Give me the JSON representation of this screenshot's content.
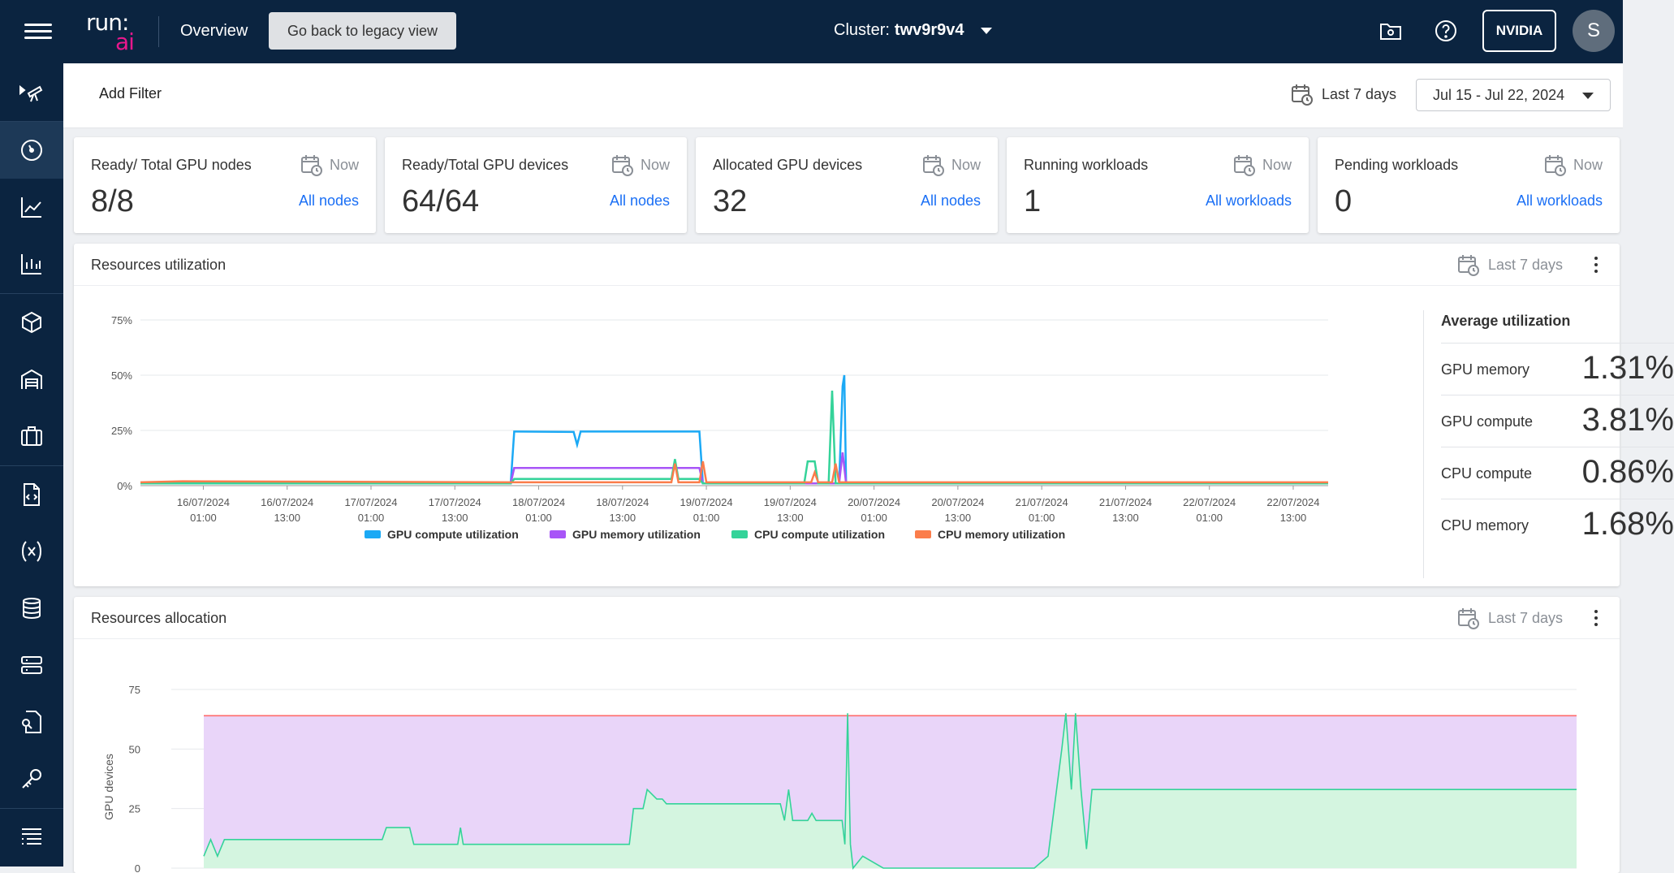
{
  "header": {
    "logo_top": "run:",
    "logo_bottom": "ai",
    "page": "Overview",
    "legacy_button": "Go back to legacy view",
    "cluster_label": "Cluster:",
    "cluster_name": "twv9r9v4",
    "tenant_button": "NVIDIA",
    "avatar_initial": "S"
  },
  "filter_bar": {
    "add_filter": "Add Filter",
    "range_label": "Last 7 days",
    "range_value": "Jul 15 - Jul 22, 2024"
  },
  "cards": [
    {
      "title": "Ready/ Total GPU nodes",
      "when": "Now",
      "value": "8/8",
      "link": "All nodes"
    },
    {
      "title": "Ready/Total GPU devices",
      "when": "Now",
      "value": "64/64",
      "link": "All nodes"
    },
    {
      "title": "Allocated GPU devices",
      "when": "Now",
      "value": "32",
      "link": "All nodes"
    },
    {
      "title": "Running workloads",
      "when": "Now",
      "value": "1",
      "link": "All workloads"
    },
    {
      "title": "Pending workloads",
      "when": "Now",
      "value": "0",
      "link": "All workloads"
    }
  ],
  "utilization_panel": {
    "title": "Resources utilization",
    "range": "Last 7 days",
    "average_title": "Average utilization",
    "averages": [
      {
        "name": "GPU memory",
        "value": "1.31%"
      },
      {
        "name": "GPU compute",
        "value": "3.81%"
      },
      {
        "name": "CPU compute",
        "value": "0.86%"
      },
      {
        "name": "CPU memory",
        "value": "1.68%"
      }
    ]
  },
  "allocation_panel": {
    "title": "Resources allocation",
    "range": "Last 7 days"
  },
  "colors": {
    "gpu_compute": "#1ba9f5",
    "gpu_memory": "#a855f7",
    "cpu_compute": "#34d399",
    "cpu_memory": "#fb7d4b",
    "link": "#1a6ff5",
    "navbar": "#0b2440"
  },
  "chart_data": [
    {
      "type": "line",
      "title": "",
      "y_ticks": [
        "75%",
        "50%",
        "25%",
        "0%"
      ],
      "ylim": [
        0,
        75
      ],
      "x_ticks": [
        {
          "date": "16/07/2024",
          "time": "01:00"
        },
        {
          "date": "16/07/2024",
          "time": "13:00"
        },
        {
          "date": "17/07/2024",
          "time": "01:00"
        },
        {
          "date": "17/07/2024",
          "time": "13:00"
        },
        {
          "date": "18/07/2024",
          "time": "01:00"
        },
        {
          "date": "18/07/2024",
          "time": "13:00"
        },
        {
          "date": "19/07/2024",
          "time": "01:00"
        },
        {
          "date": "19/07/2024",
          "time": "13:00"
        },
        {
          "date": "20/07/2024",
          "time": "01:00"
        },
        {
          "date": "20/07/2024",
          "time": "13:00"
        },
        {
          "date": "21/07/2024",
          "time": "01:00"
        },
        {
          "date": "21/07/2024",
          "time": "13:00"
        },
        {
          "date": "22/07/2024",
          "time": "01:00"
        },
        {
          "date": "22/07/2024",
          "time": "13:00"
        }
      ],
      "grid": true,
      "legend": "bottom",
      "series": [
        {
          "name": "GPU compute utilization",
          "color": "#1ba9f5",
          "points": [
            [
              "2024-07-15 16:00",
              1
            ],
            [
              "2024-07-17 21:00",
              1
            ],
            [
              "2024-07-17 21:30",
              24.5
            ],
            [
              "2024-07-18 06:00",
              24.3
            ],
            [
              "2024-07-18 06:30",
              18.5
            ],
            [
              "2024-07-18 07:00",
              24.5
            ],
            [
              "2024-07-19 00:00",
              24.5
            ],
            [
              "2024-07-19 00:30",
              1
            ],
            [
              "2024-07-19 20:00",
              1
            ],
            [
              "2024-07-19 20:30",
              45
            ],
            [
              "2024-07-19 20:45",
              50
            ],
            [
              "2024-07-19 21:00",
              1
            ],
            [
              "2024-07-22 18:00",
              1
            ]
          ]
        },
        {
          "name": "GPU memory utilization",
          "color": "#a855f7",
          "points": [
            [
              "2024-07-15 16:00",
              1
            ],
            [
              "2024-07-17 21:00",
              1
            ],
            [
              "2024-07-17 21:30",
              8
            ],
            [
              "2024-07-19 00:00",
              8
            ],
            [
              "2024-07-19 00:30",
              1
            ],
            [
              "2024-07-19 20:00",
              1
            ],
            [
              "2024-07-19 20:30",
              15
            ],
            [
              "2024-07-19 21:00",
              1
            ],
            [
              "2024-07-22 18:00",
              1
            ]
          ]
        },
        {
          "name": "CPU compute utilization",
          "color": "#34d399",
          "points": [
            [
              "2024-07-15 16:00",
              1
            ],
            [
              "2024-07-17 21:00",
              1
            ],
            [
              "2024-07-17 21:30",
              3
            ],
            [
              "2024-07-18 20:00",
              3
            ],
            [
              "2024-07-18 20:30",
              12
            ],
            [
              "2024-07-18 21:00",
              3
            ],
            [
              "2024-07-19 00:00",
              3
            ],
            [
              "2024-07-19 00:30",
              1
            ],
            [
              "2024-07-19 15:00",
              1
            ],
            [
              "2024-07-19 15:30",
              11
            ],
            [
              "2024-07-19 16:30",
              11
            ],
            [
              "2024-07-19 17:00",
              1
            ],
            [
              "2024-07-19 18:30",
              1
            ],
            [
              "2024-07-19 19:00",
              43
            ],
            [
              "2024-07-19 19:30",
              1
            ],
            [
              "2024-07-22 18:00",
              1
            ]
          ]
        },
        {
          "name": "CPU memory utilization",
          "color": "#fb7d4b",
          "points": [
            [
              "2024-07-15 16:00",
              1.5
            ],
            [
              "2024-07-15 22:00",
              2
            ],
            [
              "2024-07-17 21:00",
              1.5
            ],
            [
              "2024-07-18 20:00",
              1.5
            ],
            [
              "2024-07-18 20:30",
              10
            ],
            [
              "2024-07-18 21:00",
              1.5
            ],
            [
              "2024-07-19 00:00",
              1.5
            ],
            [
              "2024-07-19 00:30",
              11
            ],
            [
              "2024-07-19 01:00",
              1.5
            ],
            [
              "2024-07-19 16:00",
              1.5
            ],
            [
              "2024-07-19 16:30",
              6
            ],
            [
              "2024-07-19 17:00",
              1.5
            ],
            [
              "2024-07-19 19:00",
              1.5
            ],
            [
              "2024-07-19 19:30",
              10
            ],
            [
              "2024-07-19 20:00",
              1.5
            ],
            [
              "2024-07-22 18:00",
              1.5
            ]
          ]
        }
      ]
    },
    {
      "type": "area",
      "ylabel": "GPU devices",
      "y_ticks": [
        "75",
        "50",
        "25",
        "0"
      ],
      "ylim": [
        0,
        75
      ],
      "grid": true,
      "series": [
        {
          "name": "",
          "color": "#e9d5f9",
          "line": "#ff6b6b",
          "values": [
            [
              0,
              64
            ],
            [
              100,
              64
            ]
          ]
        },
        {
          "name": "",
          "color": "#d4f5e0",
          "line": "#34d399",
          "values": [
            [
              0,
              5
            ],
            [
              0.5,
              12
            ],
            [
              1,
              5
            ],
            [
              1.5,
              12
            ],
            [
              13,
              12
            ],
            [
              13.3,
              17
            ],
            [
              15,
              17
            ],
            [
              15.3,
              10
            ],
            [
              18.5,
              10
            ],
            [
              18.7,
              17
            ],
            [
              18.9,
              10
            ],
            [
              31,
              10
            ],
            [
              31.3,
              25
            ],
            [
              32,
              25
            ],
            [
              32.3,
              33
            ],
            [
              33,
              29
            ],
            [
              33.4,
              29
            ],
            [
              33.7,
              27
            ],
            [
              42,
              27
            ],
            [
              42.3,
              20
            ],
            [
              42.6,
              33
            ],
            [
              42.9,
              20
            ],
            [
              44,
              20
            ],
            [
              44.3,
              23
            ],
            [
              44.6,
              20
            ],
            [
              46.5,
              20
            ],
            [
              46.7,
              10
            ],
            [
              46.9,
              65
            ],
            [
              47.1,
              10
            ],
            [
              47.3,
              0
            ],
            [
              48,
              5
            ],
            [
              49.5,
              0
            ],
            [
              60.5,
              0
            ],
            [
              61.5,
              5
            ],
            [
              62.5,
              50
            ],
            [
              62.8,
              65
            ],
            [
              63.2,
              33
            ],
            [
              63.5,
              65
            ],
            [
              63.9,
              33
            ],
            [
              64.3,
              8
            ],
            [
              64.7,
              33
            ],
            [
              100,
              33
            ]
          ]
        }
      ]
    }
  ]
}
